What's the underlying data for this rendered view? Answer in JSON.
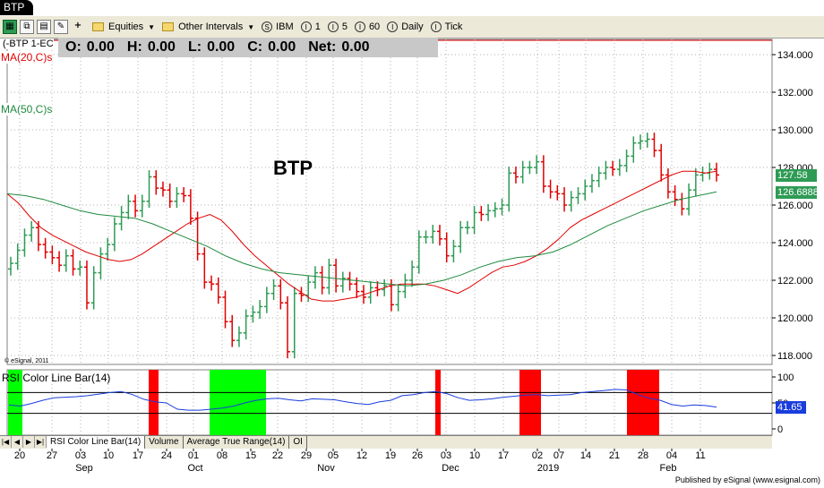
{
  "window": {
    "title": "BTP"
  },
  "toolbar": {
    "items": [
      {
        "icon": "folder-icon",
        "label": "Equities"
      },
      {
        "icon": "folder-icon",
        "label": "Other Intervals"
      },
      {
        "icon": "s-circle-icon",
        "label": "IBM"
      },
      {
        "icon": "i-circle-icon",
        "label": "1"
      },
      {
        "icon": "i-circle-icon",
        "label": "5"
      },
      {
        "icon": "i-circle-icon",
        "label": "60"
      },
      {
        "icon": "i-circle-icon",
        "label": "Daily"
      },
      {
        "icon": "i-circle-icon",
        "label": "Tick"
      }
    ]
  },
  "chart_header": {
    "symbol_label": "(-BTP 1-EC",
    "o_label": "O:",
    "o_value": "0.00",
    "h_label": "H:",
    "h_value": "0.00",
    "l_label": "L:",
    "l_value": "0.00",
    "c_label": "C:",
    "c_value": "0.00",
    "net_label": "Net:",
    "net_value": "0.00"
  },
  "studies": {
    "ma20": "MA(20,C)s",
    "ma50": "MA(50,C)s",
    "rsi": "RSI Color Line Bar(14)"
  },
  "chart_title": "BTP",
  "copyright": "© eSignal, 2011",
  "price_tags": {
    "close": "127.58",
    "ma50": "126.6888"
  },
  "rsi_tag": "41.65",
  "colors": {
    "up": "#2e9b55",
    "down": "#e00000",
    "ma20": "#e00000",
    "ma50": "#1e8a3e",
    "rsi_line": "#1a3ddc",
    "overbought": "#ff0000",
    "oversold": "#00ff00"
  },
  "chart_data": {
    "type": "candlestick",
    "title": "BTP",
    "ylim": [
      117.4,
      134.8
    ],
    "y_ticks": [
      118,
      120,
      122,
      124,
      126,
      128,
      130,
      132,
      134
    ],
    "day_ticks": [
      "20",
      "27",
      "03",
      "10",
      "17",
      "24",
      "01",
      "08",
      "15",
      "22",
      "29",
      "05",
      "12",
      "19",
      "26",
      "03",
      "10",
      "17",
      "02",
      "07",
      "14",
      "21",
      "28",
      "04",
      "11"
    ],
    "month_labels": [
      "Sep",
      "Oct",
      "Nov",
      "Dec",
      "2019",
      "Feb"
    ],
    "closes": [
      122.9,
      123.6,
      124.4,
      124.8,
      123.9,
      123.5,
      123.2,
      122.8,
      123.3,
      122.6,
      122.7,
      120.8,
      122.4,
      123.4,
      123.9,
      125.0,
      125.6,
      126.2,
      125.7,
      126.2,
      127.5,
      126.9,
      126.8,
      126.2,
      126.6,
      126.5,
      125.3,
      123.4,
      121.9,
      121.8,
      121.1,
      119.8,
      118.8,
      119.2,
      120.1,
      120.3,
      120.6,
      121.3,
      121.7,
      120.8,
      118.2,
      121.3,
      121.2,
      121.9,
      122.4,
      121.6,
      122.8,
      121.7,
      122.1,
      121.8,
      121.4,
      121.1,
      121.6,
      121.5,
      121.7,
      120.7,
      121.4,
      122.0,
      122.7,
      124.3,
      124.3,
      124.6,
      124.2,
      123.3,
      123.8,
      124.8,
      124.8,
      125.6,
      125.5,
      125.7,
      125.8,
      126.0,
      127.7,
      127.5,
      128.0,
      128.0,
      128.3,
      127.0,
      126.7,
      126.6,
      126.0,
      126.4,
      126.6,
      127.0,
      127.3,
      127.7,
      128.0,
      127.9,
      128.1,
      128.6,
      129.3,
      129.4,
      129.5,
      128.9,
      127.6,
      126.7,
      126.3,
      125.8,
      126.8,
      127.6,
      127.7,
      127.9,
      127.6
    ],
    "ma20": [
      126.6,
      126.1,
      125.4,
      124.8,
      124.4,
      124.1,
      123.8,
      123.5,
      123.3,
      123.1,
      123.0,
      123.1,
      123.4,
      123.8,
      124.2,
      124.6,
      125.0,
      125.3,
      125.5,
      125.2,
      124.6,
      123.9,
      123.3,
      122.8,
      122.3,
      121.8,
      121.4,
      121.0,
      120.9,
      120.9,
      121.0,
      121.1,
      121.3,
      121.5,
      121.7,
      121.8,
      121.8,
      121.8,
      121.7,
      121.5,
      121.3,
      121.6,
      122.0,
      122.4,
      122.7,
      122.8,
      123.0,
      123.3,
      123.7,
      124.2,
      124.8,
      125.2,
      125.5,
      125.8,
      126.1,
      126.4,
      126.7,
      127.0,
      127.3,
      127.6,
      127.8,
      127.8,
      127.7,
      127.8
    ],
    "ma50": [
      126.6,
      126.5,
      126.3,
      126.0,
      125.7,
      125.5,
      125.4,
      125.3,
      125.0,
      124.6,
      124.2,
      123.8,
      123.3,
      122.9,
      122.6,
      122.4,
      122.3,
      122.2,
      122.1,
      122.0,
      121.9,
      121.8,
      121.7,
      121.8,
      122.0,
      122.3,
      122.7,
      123.0,
      123.2,
      123.3,
      123.5,
      123.9,
      124.4,
      124.9,
      125.3,
      125.7,
      126.0,
      126.3,
      126.5,
      126.7
    ],
    "rsi": [
      46,
      44,
      49,
      55,
      60,
      61,
      62,
      64,
      67,
      70,
      72,
      66,
      57,
      52,
      50,
      38,
      36,
      36,
      38,
      40,
      44,
      50,
      55,
      58,
      59,
      56,
      54,
      58,
      57,
      56,
      52,
      49,
      47,
      52,
      55,
      64,
      66,
      70,
      72,
      68,
      60,
      55,
      56,
      58,
      61,
      63,
      65,
      66,
      64,
      65,
      66,
      70,
      72,
      74,
      76,
      75,
      66,
      59,
      55,
      47,
      44,
      46,
      45,
      42
    ],
    "rsi_levels": [
      70,
      30
    ],
    "rsi_ticks": [
      0,
      50,
      100
    ]
  },
  "tabs": [
    "RSI Color Line Bar(14)",
    "Volume",
    "Average True Range(14)",
    "OI"
  ],
  "footer": "Published by eSignal (www.esignal.com)"
}
